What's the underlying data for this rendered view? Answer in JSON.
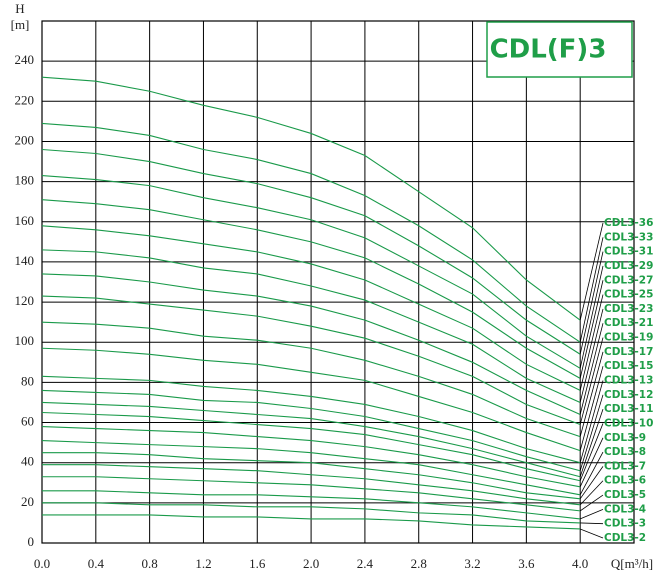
{
  "chart_data": {
    "type": "line",
    "title": "CDL(F)3",
    "y_label": "H",
    "y_unit": "[m]",
    "x_label": "Q[m³/h]",
    "x": [
      0,
      0.4,
      0.8,
      1.2,
      1.6,
      2.0,
      2.4,
      2.8,
      3.2,
      3.6,
      4.0
    ],
    "xlim": [
      0,
      4.4
    ],
    "xticks": [
      {
        "value": 0,
        "label": "0.0"
      },
      0.4,
      0.8,
      1.2,
      1.6,
      {
        "value": 2,
        "label": "2.0"
      },
      2.4,
      2.8,
      3.2,
      3.6,
      {
        "value": 4,
        "label": "4.0"
      }
    ],
    "ylim": [
      0,
      260
    ],
    "yticks": [
      0,
      20,
      40,
      60,
      80,
      100,
      120,
      140,
      160,
      180,
      200,
      220,
      240
    ],
    "grid": true,
    "color": "#1a9a4a",
    "series": [
      {
        "name": "CDL3-36",
        "values": [
          232,
          230,
          225,
          218,
          212,
          204,
          193,
          175,
          157,
          131,
          111
        ]
      },
      {
        "name": "CDL3-33",
        "values": [
          209,
          207,
          203,
          196,
          191,
          184,
          173,
          158,
          141,
          118,
          100
        ]
      },
      {
        "name": "CDL3-31",
        "values": [
          196,
          194,
          190,
          184,
          179,
          172,
          163,
          148,
          132,
          111,
          94
        ]
      },
      {
        "name": "CDL3-29",
        "values": [
          183,
          181,
          178,
          172,
          167,
          161,
          152,
          138,
          124,
          103,
          87
        ]
      },
      {
        "name": "CDL3-27",
        "values": [
          171,
          169,
          166,
          161,
          156,
          150,
          142,
          129,
          115,
          97,
          82
        ]
      },
      {
        "name": "CDL3-25",
        "values": [
          158,
          156,
          153,
          149,
          145,
          139,
          131,
          119,
          107,
          89,
          76
        ]
      },
      {
        "name": "CDL3-23",
        "values": [
          146,
          145,
          142,
          137,
          134,
          128,
          121,
          110,
          99,
          82,
          70
        ]
      },
      {
        "name": "CDL3-21",
        "values": [
          134,
          133,
          130,
          126,
          123,
          118,
          111,
          101,
          90,
          76,
          64
        ]
      },
      {
        "name": "CDL3-19",
        "values": [
          123,
          122,
          119,
          116,
          113,
          108,
          102,
          93,
          83,
          69,
          59
        ]
      },
      {
        "name": "CDL3-17",
        "values": [
          110,
          109,
          107,
          103,
          101,
          97,
          91,
          83,
          74,
          62,
          53
        ]
      },
      {
        "name": "CDL3-15",
        "values": [
          97,
          96,
          94,
          91,
          89,
          85,
          81,
          73,
          65,
          55,
          46
        ]
      },
      {
        "name": "CDL3-13",
        "values": [
          83,
          82,
          81,
          78,
          76,
          73,
          69,
          63,
          56,
          47,
          40
        ]
      },
      {
        "name": "CDL3-12",
        "values": [
          76,
          75,
          74,
          71,
          70,
          67,
          63,
          57,
          51,
          43,
          36
        ]
      },
      {
        "name": "CDL3-11",
        "values": [
          70,
          69,
          68,
          66,
          64,
          62,
          58,
          53,
          47,
          40,
          33
        ]
      },
      {
        "name": "CDL3-10",
        "values": [
          65,
          64,
          63,
          61,
          59,
          57,
          54,
          49,
          44,
          37,
          31
        ]
      },
      {
        "name": "CDL3-9",
        "values": [
          58,
          57,
          56,
          55,
          53,
          51,
          48,
          44,
          39,
          33,
          28
        ]
      },
      {
        "name": "CDL3-8",
        "values": [
          51,
          50,
          49,
          48,
          47,
          45,
          42,
          39,
          34,
          29,
          24
        ]
      },
      {
        "name": "CDL3-7",
        "values": [
          45,
          45,
          44,
          42,
          41,
          40,
          37,
          34,
          30,
          25,
          22
        ]
      },
      {
        "name": "CDL3-6",
        "values": [
          39,
          39,
          38,
          37,
          36,
          34,
          32,
          29,
          26,
          22,
          19
        ]
      },
      {
        "name": "CDL3-5",
        "values": [
          33,
          33,
          32,
          31,
          30,
          29,
          27,
          25,
          22,
          19,
          16
        ]
      },
      {
        "name": "CDL3-4",
        "values": [
          26,
          26,
          25,
          24,
          24,
          23,
          22,
          20,
          18,
          15,
          12
        ]
      },
      {
        "name": "CDL3-3",
        "values": [
          20,
          20,
          19,
          19,
          18,
          18,
          17,
          15,
          14,
          11,
          10
        ]
      },
      {
        "name": "CDL3-2",
        "values": [
          14,
          14,
          14,
          13,
          13,
          12,
          12,
          11,
          9,
          8,
          7
        ]
      }
    ]
  }
}
